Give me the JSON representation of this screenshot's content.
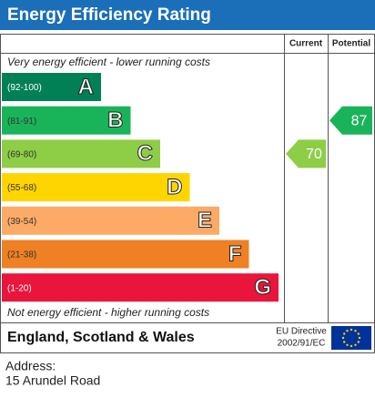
{
  "title": "Energy Efficiency Rating",
  "headers": {
    "current": "Current",
    "potential": "Potential"
  },
  "top_note": "Very energy efficient - lower running costs",
  "bottom_note": "Not energy efficient - higher running costs",
  "bands": [
    {
      "range": "(92-100)",
      "letter": "A",
      "color": "#008054"
    },
    {
      "range": "(81-91)",
      "letter": "B",
      "color": "#19b459"
    },
    {
      "range": "(69-80)",
      "letter": "C",
      "color": "#8dce46"
    },
    {
      "range": "(55-68)",
      "letter": "D",
      "color": "#ffd500"
    },
    {
      "range": "(39-54)",
      "letter": "E",
      "color": "#fcaa65"
    },
    {
      "range": "(21-38)",
      "letter": "F",
      "color": "#ef8023"
    },
    {
      "range": "(1-20)",
      "letter": "G",
      "color": "#e9153b"
    }
  ],
  "current": 70,
  "potential": 87,
  "footer": {
    "region": "England, Scotland & Wales",
    "directive": [
      "EU Directive",
      "2002/91/EC"
    ]
  },
  "address": {
    "label": "Address:",
    "value": "15 Arundel Road"
  }
}
